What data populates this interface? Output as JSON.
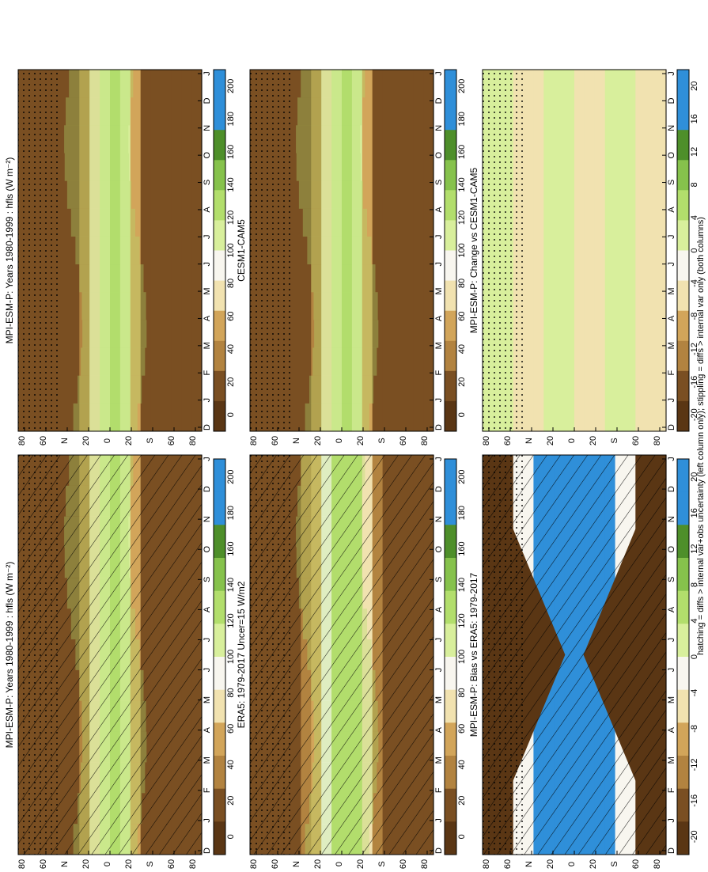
{
  "colors": {
    "brown_dark": "#5a3614",
    "brown": "#7a4f22",
    "tan": "#b28340",
    "gold": "#d2a55a",
    "cream": "#f1e2b0",
    "white": "#f8f6ef",
    "lime_light": "#d8ef9c",
    "lime": "#b2de6c",
    "green": "#86c24c",
    "green_dark": "#4e8f2a",
    "blue": "#2f8fd9",
    "stipple": "#000000"
  },
  "footer": {
    "caption": "hatching = diffs > internal var+obs uncertainty (left column only); stippling = diffs > internal var only (both columns)"
  },
  "chart_data": [
    {
      "type": "heatmap",
      "id": "model_climatology",
      "title": "MPI-ESM-P: Years 1980-1999 : hfls (W m⁻²)",
      "x": [
        "D",
        "J",
        "F",
        "M",
        "A",
        "M",
        "J",
        "J",
        "A",
        "S",
        "O",
        "N",
        "D",
        "J"
      ],
      "y": [
        "80",
        "60",
        "N",
        "20",
        "0",
        "20",
        "S",
        "60",
        "80"
      ],
      "colorbar": [
        "200",
        "180",
        "160",
        "140",
        "120",
        "100",
        "80",
        "60",
        "40",
        "20",
        "0"
      ],
      "units": "W m⁻²",
      "hatching": true,
      "stippling": true
    },
    {
      "type": "heatmap",
      "id": "model_climatology_repeat",
      "title": "MPI-ESM-P: Years 1980-1999 : hfls (W m⁻²)",
      "x": [
        "D",
        "J",
        "F",
        "M",
        "A",
        "M",
        "J",
        "J",
        "A",
        "S",
        "O",
        "N",
        "D",
        "J"
      ],
      "y": [
        "80",
        "60",
        "N",
        "20",
        "0",
        "20",
        "S",
        "60",
        "80"
      ],
      "colorbar": [
        "200",
        "180",
        "160",
        "140",
        "120",
        "100",
        "80",
        "60",
        "40",
        "20",
        "0"
      ],
      "units": "W m⁻²",
      "hatching": false,
      "stippling": true
    },
    {
      "type": "heatmap",
      "id": "reference",
      "title": "ERA5: 1979-2017 Uncer=15 W/m2",
      "x": [
        "D",
        "J",
        "F",
        "M",
        "A",
        "M",
        "J",
        "J",
        "A",
        "S",
        "O",
        "N",
        "D",
        "J"
      ],
      "y": [
        "80",
        "60",
        "N",
        "20",
        "0",
        "20",
        "S",
        "60",
        "80"
      ],
      "colorbar": [
        "200",
        "180",
        "160",
        "140",
        "120",
        "100",
        "80",
        "60",
        "40",
        "20",
        "0"
      ],
      "units": "W/m2",
      "hatching": true,
      "stippling": true
    },
    {
      "type": "heatmap",
      "id": "comparison_model",
      "title": "CESM1-CAM5",
      "x": [
        "D",
        "J",
        "F",
        "M",
        "A",
        "M",
        "J",
        "J",
        "A",
        "S",
        "O",
        "N",
        "D",
        "J"
      ],
      "y": [
        "80",
        "60",
        "N",
        "20",
        "0",
        "20",
        "S",
        "60",
        "80"
      ],
      "colorbar": [
        "200",
        "180",
        "160",
        "140",
        "120",
        "100",
        "80",
        "60",
        "40",
        "20",
        "0"
      ],
      "hatching": false,
      "stippling": true
    },
    {
      "type": "heatmap",
      "id": "bias",
      "title": "MPI-ESM-P: Bias vs ERA5: 1979-2017",
      "x": [
        "D",
        "J",
        "F",
        "M",
        "A",
        "M",
        "J",
        "J",
        "A",
        "S",
        "O",
        "N",
        "D",
        "J"
      ],
      "y": [
        "80",
        "60",
        "N",
        "20",
        "0",
        "20",
        "S",
        "60",
        "80"
      ],
      "colorbar": [
        "20",
        "16",
        "12",
        "8",
        "4",
        "0",
        "-4",
        "-8",
        "-12",
        "-16",
        "-20"
      ],
      "hatching": true,
      "stippling": true
    },
    {
      "type": "heatmap",
      "id": "change",
      "title": "MPI-ESM-P: Change vs CESM1-CAM5",
      "x": [
        "D",
        "J",
        "F",
        "M",
        "A",
        "M",
        "J",
        "J",
        "A",
        "S",
        "O",
        "N",
        "D",
        "J"
      ],
      "y": [
        "80",
        "60",
        "N",
        "20",
        "0",
        "20",
        "S",
        "60",
        "80"
      ],
      "colorbar": [
        "20",
        "16",
        "12",
        "8",
        "4",
        "0",
        "-4",
        "-8",
        "-12",
        "-16",
        "-20"
      ],
      "hatching": false,
      "stippling": true
    }
  ]
}
